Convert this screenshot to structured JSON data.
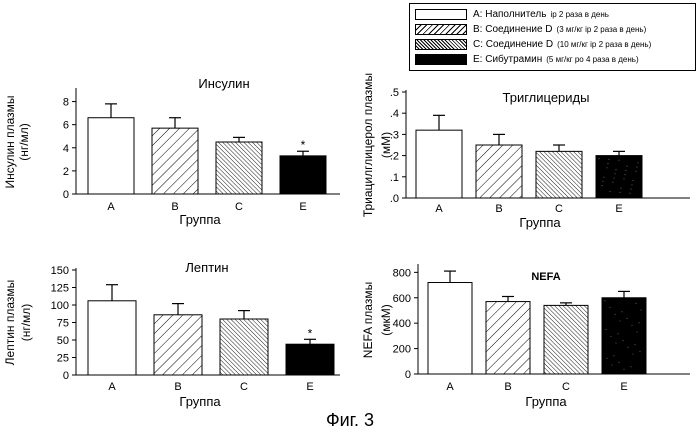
{
  "figure_caption": "Фиг. 3",
  "legend": {
    "items": [
      {
        "name": "A: Наполнитель",
        "dose": "ip 2 раза в день",
        "fill": "white"
      },
      {
        "name": "B: Соединение D",
        "dose": "(3 мг/кг ip 2 раза в день)",
        "fill": "hatch-sparse"
      },
      {
        "name": "C: Соединение D",
        "dose": "(10 мг/кг ip 2 раза в день)",
        "fill": "hatch-dense"
      },
      {
        "name": "E: Сибутрамин",
        "dose": "(5 мг/кг po 4 раза в день)",
        "fill": "black"
      }
    ]
  },
  "colors": {
    "black": "#000000",
    "white": "#ffffff",
    "noise": "#555555"
  },
  "chart_data": [
    {
      "type": "bar",
      "title": "Инсулин",
      "ylabel": "Инсулин плазмы (нг/мл)",
      "xlabel": "Группа",
      "categories": [
        "A",
        "B",
        "C",
        "E"
      ],
      "values": [
        6.6,
        5.7,
        4.5,
        3.3
      ],
      "errors": [
        1.2,
        0.9,
        0.4,
        0.4
      ],
      "significance": [
        "",
        "",
        "",
        "*"
      ],
      "ylim": [
        0,
        9
      ],
      "yticks": [
        "0",
        "2",
        "4",
        "6",
        "8"
      ],
      "ytick_values": [
        0,
        2,
        4,
        6,
        8
      ]
    },
    {
      "type": "bar",
      "title": "Триглицериды",
      "ylabel": "Триацилглицерол плазмы (мМ)",
      "xlabel": "Группа",
      "categories": [
        "A",
        "B",
        "C",
        "E"
      ],
      "values": [
        0.32,
        0.25,
        0.22,
        0.2
      ],
      "errors": [
        0.07,
        0.05,
        0.03,
        0.02
      ],
      "significance": [
        "",
        "",
        "",
        ""
      ],
      "ylim": [
        0,
        0.5
      ],
      "yticks": [
        ".0",
        ".1",
        ".2",
        ".3",
        ".4",
        ".5"
      ],
      "ytick_values": [
        0,
        0.1,
        0.2,
        0.3,
        0.4,
        0.5
      ]
    },
    {
      "type": "bar",
      "title": "Лептин",
      "ylabel": "Лептин плазмы (нг/мл)",
      "xlabel": "Группа",
      "categories": [
        "A",
        "B",
        "C",
        "E"
      ],
      "values": [
        106,
        86,
        80,
        44
      ],
      "errors": [
        23,
        16,
        12,
        7
      ],
      "significance": [
        "",
        "",
        "",
        "*"
      ],
      "ylim": [
        0,
        150
      ],
      "yticks": [
        "0",
        "25",
        "50",
        "75",
        "100",
        "125",
        "150"
      ],
      "ytick_values": [
        0,
        25,
        50,
        75,
        100,
        125,
        150
      ]
    },
    {
      "type": "bar",
      "title": "NEFA",
      "ylabel": "NEFA плазмы (мкМ)",
      "xlabel": "Группа",
      "categories": [
        "A",
        "B",
        "C",
        "E"
      ],
      "values": [
        720,
        570,
        540,
        600
      ],
      "errors": [
        90,
        40,
        20,
        50
      ],
      "significance": [
        "",
        "",
        "",
        ""
      ],
      "ylim": [
        0,
        850
      ],
      "yticks": [
        "0",
        "200",
        "400",
        "600",
        "800"
      ],
      "ytick_values": [
        0,
        200,
        400,
        600,
        800
      ]
    }
  ]
}
